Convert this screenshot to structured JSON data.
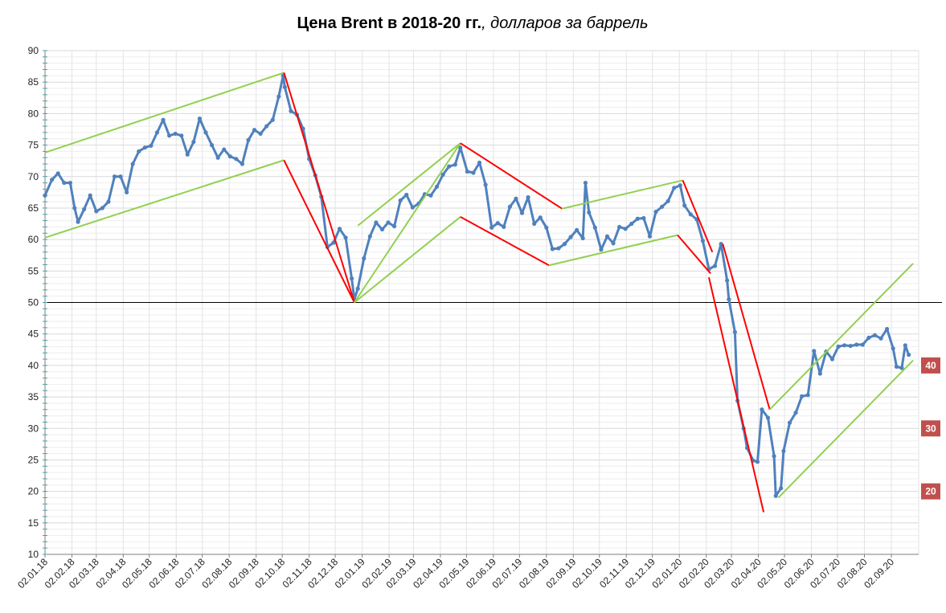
{
  "chart_data": {
    "type": "line",
    "title": "Цена Brent в 2018-20 гг.",
    "title_italic": ", долларов за баррель",
    "xlabel": "",
    "ylabel": "",
    "ylim": [
      10,
      90
    ],
    "y_ticks": [
      10,
      15,
      20,
      25,
      30,
      35,
      40,
      45,
      50,
      55,
      60,
      65,
      70,
      75,
      80,
      85,
      90
    ],
    "x_tick_labels": [
      "02.01.18",
      "02.02.18",
      "02.03.18",
      "02.04.18",
      "02.05.18",
      "02.06.18",
      "02.07.18",
      "02.08.18",
      "02.09.18",
      "02.10.18",
      "02.11.18",
      "02.12.18",
      "02.01.19",
      "02.02.19",
      "02.03.19",
      "02.04.19",
      "02.05.19",
      "02.06.19",
      "02.07.19",
      "02.08.19",
      "02.09.19",
      "02.10.19",
      "02.11.19",
      "02.12.19",
      "02.01.20",
      "02.02.20",
      "02.03.20",
      "02.04.20",
      "02.05.20",
      "02.06.20",
      "02.07.20",
      "02.08.20",
      "02.09.20"
    ],
    "grid": true,
    "reference_line": 50,
    "series": [
      {
        "color": "#4f81bd",
        "points": [
          [
            "02.01.18",
            67
          ],
          [
            "10.01.18",
            69.5
          ],
          [
            "17.01.18",
            70.5
          ],
          [
            "24.01.18",
            69
          ],
          [
            "31.01.18",
            69
          ],
          [
            "05.02.18",
            65
          ],
          [
            "09.02.18",
            62.8
          ],
          [
            "16.02.18",
            64.8
          ],
          [
            "23.02.18",
            67
          ],
          [
            "02.03.18",
            64.5
          ],
          [
            "09.03.18",
            65
          ],
          [
            "16.03.18",
            66
          ],
          [
            "23.03.18",
            70
          ],
          [
            "30.03.18",
            70
          ],
          [
            "06.04.18",
            67.5
          ],
          [
            "13.04.18",
            72
          ],
          [
            "20.04.18",
            74
          ],
          [
            "27.04.18",
            74.6
          ],
          [
            "04.05.18",
            74.9
          ],
          [
            "11.05.18",
            77
          ],
          [
            "18.05.18",
            79
          ],
          [
            "25.05.18",
            76.5
          ],
          [
            "01.06.18",
            76.8
          ],
          [
            "08.06.18",
            76.5
          ],
          [
            "15.06.18",
            73.5
          ],
          [
            "22.06.18",
            75.5
          ],
          [
            "29.06.18",
            79.2
          ],
          [
            "06.07.18",
            77
          ],
          [
            "13.07.18",
            75
          ],
          [
            "20.07.18",
            73
          ],
          [
            "27.07.18",
            74.3
          ],
          [
            "03.08.18",
            73.2
          ],
          [
            "10.08.18",
            72.8
          ],
          [
            "17.08.18",
            72
          ],
          [
            "24.08.18",
            75.8
          ],
          [
            "31.08.18",
            77.4
          ],
          [
            "07.09.18",
            76.8
          ],
          [
            "14.09.18",
            78
          ],
          [
            "21.09.18",
            79
          ],
          [
            "28.09.18",
            82.7
          ],
          [
            "03.10.18",
            86
          ],
          [
            "05.10.18",
            84.2
          ],
          [
            "12.10.18",
            80.4
          ],
          [
            "19.10.18",
            79.8
          ],
          [
            "26.10.18",
            77.6
          ],
          [
            "02.11.18",
            72.8
          ],
          [
            "09.11.18",
            70.2
          ],
          [
            "16.11.18",
            66.8
          ],
          [
            "23.11.18",
            58.8
          ],
          [
            "30.11.18",
            59.5
          ],
          [
            "07.12.18",
            61.7
          ],
          [
            "14.12.18",
            60.3
          ],
          [
            "21.12.18",
            53.8
          ],
          [
            "24.12.18",
            50.5
          ],
          [
            "28.12.18",
            52.2
          ],
          [
            "04.01.19",
            57
          ],
          [
            "11.01.19",
            60.5
          ],
          [
            "18.01.19",
            62.7
          ],
          [
            "25.01.19",
            61.6
          ],
          [
            "01.02.19",
            62.7
          ],
          [
            "08.02.19",
            62.1
          ],
          [
            "15.02.19",
            66.2
          ],
          [
            "22.02.19",
            67.1
          ],
          [
            "01.03.19",
            65.1
          ],
          [
            "08.03.19",
            65.7
          ],
          [
            "15.03.19",
            67.2
          ],
          [
            "22.03.19",
            67
          ],
          [
            "29.03.19",
            68.4
          ],
          [
            "05.04.19",
            70.3
          ],
          [
            "12.04.19",
            71.6
          ],
          [
            "19.04.19",
            71.9
          ],
          [
            "25.04.19",
            74.6
          ],
          [
            "03.05.19",
            70.8
          ],
          [
            "10.05.19",
            70.6
          ],
          [
            "17.05.19",
            72.2
          ],
          [
            "24.05.19",
            68.7
          ],
          [
            "31.05.19",
            61.9
          ],
          [
            "07.06.19",
            62.6
          ],
          [
            "14.06.19",
            62
          ],
          [
            "21.06.19",
            65.2
          ],
          [
            "28.06.19",
            66.5
          ],
          [
            "05.07.19",
            64.2
          ],
          [
            "12.07.19",
            66.7
          ],
          [
            "19.07.19",
            62.5
          ],
          [
            "26.07.19",
            63.5
          ],
          [
            "02.08.19",
            61.9
          ],
          [
            "09.08.19",
            58.5
          ],
          [
            "16.08.19",
            58.6
          ],
          [
            "23.08.19",
            59.3
          ],
          [
            "30.08.19",
            60.4
          ],
          [
            "06.09.19",
            61.5
          ],
          [
            "13.09.19",
            60.2
          ],
          [
            "16.09.19",
            69
          ],
          [
            "20.09.19",
            64.3
          ],
          [
            "27.09.19",
            61.9
          ],
          [
            "04.10.19",
            58.4
          ],
          [
            "11.10.19",
            60.5
          ],
          [
            "18.10.19",
            59.4
          ],
          [
            "25.10.19",
            62
          ],
          [
            "01.11.19",
            61.7
          ],
          [
            "08.11.19",
            62.5
          ],
          [
            "15.11.19",
            63.3
          ],
          [
            "22.11.19",
            63.4
          ],
          [
            "29.11.19",
            60.5
          ],
          [
            "06.12.19",
            64.4
          ],
          [
            "13.12.19",
            65.2
          ],
          [
            "20.12.19",
            66.1
          ],
          [
            "27.12.19",
            68.2
          ],
          [
            "03.01.20",
            68.6
          ],
          [
            "08.01.20",
            65.4
          ],
          [
            "15.01.20",
            64
          ],
          [
            "22.01.20",
            63.2
          ],
          [
            "29.01.20",
            59.8
          ],
          [
            "05.02.20",
            55.3
          ],
          [
            "12.02.20",
            55.8
          ],
          [
            "19.02.20",
            59.3
          ],
          [
            "26.02.20",
            53.5
          ],
          [
            "28.02.20",
            50.5
          ],
          [
            "06.03.20",
            45.3
          ],
          [
            "09.03.20",
            34.4
          ],
          [
            "16.03.20",
            30
          ],
          [
            "20.03.20",
            26.9
          ],
          [
            "27.03.20",
            24.9
          ],
          [
            "01.04.20",
            24.7
          ],
          [
            "06.04.20",
            33
          ],
          [
            "13.04.20",
            31.7
          ],
          [
            "20.04.20",
            25.6
          ],
          [
            "22.04.20",
            19.3
          ],
          [
            "28.04.20",
            20.5
          ],
          [
            "01.05.20",
            26.4
          ],
          [
            "08.05.20",
            30.9
          ],
          [
            "15.05.20",
            32.5
          ],
          [
            "22.05.20",
            35.1
          ],
          [
            "29.05.20",
            35.3
          ],
          [
            "05.06.20",
            42.3
          ],
          [
            "12.06.20",
            38.7
          ],
          [
            "19.06.20",
            42.2
          ],
          [
            "26.06.20",
            41
          ],
          [
            "03.07.20",
            43
          ],
          [
            "10.07.20",
            43.2
          ],
          [
            "17.07.20",
            43.1
          ],
          [
            "24.07.20",
            43.3
          ],
          [
            "31.07.20",
            43.3
          ],
          [
            "07.08.20",
            44.4
          ],
          [
            "14.08.20",
            44.8
          ],
          [
            "21.08.20",
            44.3
          ],
          [
            "28.08.20",
            45.8
          ],
          [
            "04.09.20",
            42.7
          ],
          [
            "08.09.20",
            39.8
          ],
          [
            "14.09.20",
            39.6
          ],
          [
            "18.09.20",
            43.2
          ],
          [
            "22.09.20",
            41.7
          ]
        ]
      }
    ],
    "trend_lines": [
      {
        "color": "#92d050",
        "points": [
          [
            "02.01.18",
            73.8
          ],
          [
            "04.10.18",
            86.5
          ]
        ]
      },
      {
        "color": "#92d050",
        "points": [
          [
            "02.01.18",
            60.3
          ],
          [
            "04.10.18",
            72.6
          ]
        ]
      },
      {
        "color": "#ff0000",
        "points": [
          [
            "04.10.18",
            86.5
          ],
          [
            "24.12.18",
            50
          ]
        ]
      },
      {
        "color": "#ff0000",
        "points": [
          [
            "04.10.18",
            72.6
          ],
          [
            "24.12.18",
            50
          ]
        ]
      },
      {
        "color": "#92d050",
        "points": [
          [
            "24.12.18",
            50
          ],
          [
            "25.04.19",
            75.3
          ]
        ]
      },
      {
        "color": "#92d050",
        "points": [
          [
            "24.12.18",
            50
          ],
          [
            "25.04.19",
            63.6
          ]
        ]
      },
      {
        "color": "#92d050",
        "points": [
          [
            "28.12.18",
            62.2
          ],
          [
            "25.04.19",
            75.3
          ]
        ]
      },
      {
        "color": "#ff0000",
        "points": [
          [
            "25.04.19",
            75.3
          ],
          [
            "20.08.19",
            64.9
          ]
        ]
      },
      {
        "color": "#ff0000",
        "points": [
          [
            "25.04.19",
            63.6
          ],
          [
            "05.08.19",
            55.9
          ]
        ]
      },
      {
        "color": "#92d050",
        "points": [
          [
            "20.08.19",
            64.9
          ],
          [
            "06.01.20",
            69.4
          ]
        ]
      },
      {
        "color": "#92d050",
        "points": [
          [
            "05.08.19",
            55.9
          ],
          [
            "31.12.19",
            60.7
          ]
        ]
      },
      {
        "color": "#ff0000",
        "points": [
          [
            "06.01.20",
            69.4
          ],
          [
            "09.02.20",
            58
          ]
        ]
      },
      {
        "color": "#ff0000",
        "points": [
          [
            "31.12.19",
            60.7
          ],
          [
            "07.02.20",
            54.6
          ]
        ]
      },
      {
        "color": "#ff0000",
        "points": [
          [
            "21.02.20",
            59.3
          ],
          [
            "15.04.20",
            33
          ]
        ]
      },
      {
        "color": "#ff0000",
        "points": [
          [
            "05.02.20",
            54
          ],
          [
            "08.04.20",
            16.7
          ]
        ]
      },
      {
        "color": "#92d050",
        "points": [
          [
            "15.04.20",
            33
          ],
          [
            "27.09.20",
            56.2
          ]
        ]
      },
      {
        "color": "#92d050",
        "points": [
          [
            "25.04.20",
            19
          ],
          [
            "27.09.20",
            40.8
          ]
        ]
      }
    ],
    "level_labels": [
      {
        "y": 40,
        "text": "40",
        "color": "#c0504d"
      },
      {
        "y": 30,
        "text": "30",
        "color": "#c0504d"
      },
      {
        "y": 20,
        "text": "20",
        "color": "#c0504d"
      }
    ]
  }
}
